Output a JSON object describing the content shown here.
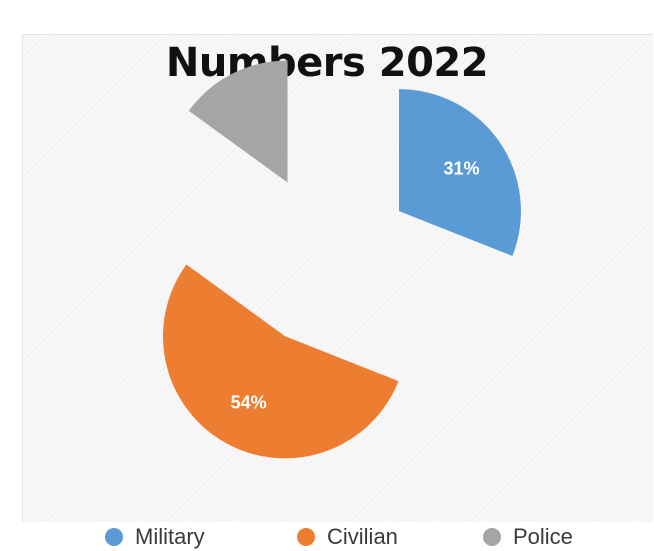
{
  "chart_data": {
    "type": "pie",
    "title": "Numbers 2022",
    "exploded": true,
    "slices": [
      {
        "label": "Military",
        "value": 31,
        "display": "31%",
        "color": "#5b9bd5"
      },
      {
        "label": "Civilian",
        "value": 54,
        "display": "54%",
        "color": "#ed7d31"
      },
      {
        "label": "Police",
        "value": 15,
        "display": "",
        "color": "#a5a5a5"
      }
    ],
    "legend_position": "bottom"
  }
}
